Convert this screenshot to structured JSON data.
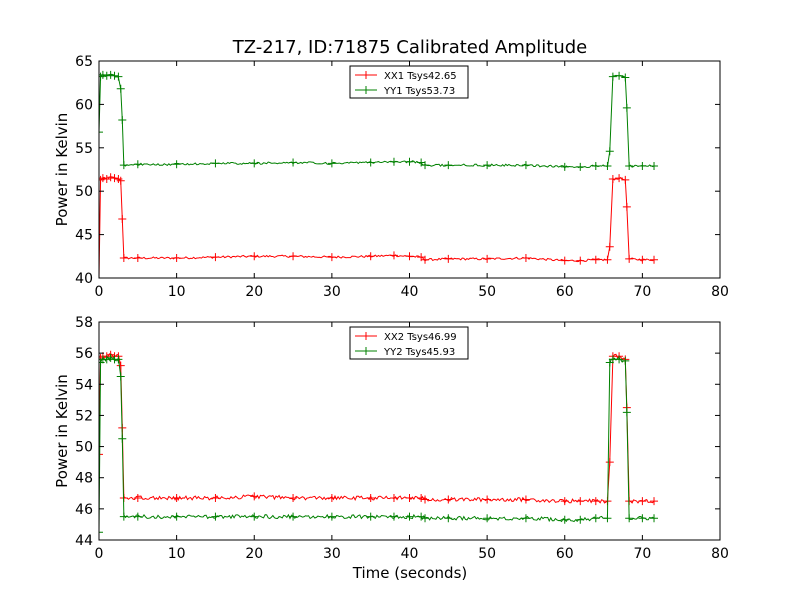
{
  "figure": {
    "title": "TZ-217, ID:71875 Calibrated Amplitude",
    "xlabel": "Time (seconds)"
  },
  "chart_data": [
    {
      "type": "line",
      "title": "TZ-217, ID:71875 Calibrated Amplitude",
      "xlabel": "",
      "ylabel": "Power in Kelvin",
      "xlim": [
        0,
        80
      ],
      "ylim": [
        40,
        65
      ],
      "xticks": [
        0,
        10,
        20,
        30,
        40,
        50,
        60,
        70,
        80
      ],
      "yticks": [
        40,
        45,
        50,
        55,
        60,
        65
      ],
      "grid": false,
      "legend": "top-center",
      "marker": "+",
      "series": [
        {
          "name": "XX1 Tsys42.65",
          "color": "#ff0000",
          "x": [
            0,
            0.2,
            0.5,
            1,
            1.5,
            2,
            2.5,
            2.8,
            3.0,
            3.2,
            5,
            10,
            15,
            20,
            25,
            30,
            35,
            38,
            40,
            41.5,
            42,
            45,
            50,
            55,
            60,
            62,
            64,
            65.5,
            65.8,
            66.2,
            67,
            67.8,
            68.0,
            68.3,
            70,
            71.5
          ],
          "y": [
            40,
            51.3,
            51.5,
            51.4,
            51.6,
            51.5,
            51.4,
            51.2,
            46.8,
            42.3,
            42.3,
            42.3,
            42.4,
            42.5,
            42.5,
            42.4,
            42.5,
            42.6,
            42.5,
            42.4,
            42.1,
            42.2,
            42.2,
            42.3,
            42.0,
            42.0,
            42.1,
            42.1,
            43.6,
            51.4,
            51.5,
            51.3,
            48.2,
            42.2,
            42.1,
            42.1
          ]
        },
        {
          "name": "YY1 Tsys53.73",
          "color": "#008000",
          "x": [
            0,
            0.2,
            0.5,
            1,
            1.5,
            2,
            2.5,
            2.8,
            3.0,
            3.2,
            5,
            10,
            15,
            20,
            25,
            30,
            35,
            38,
            40,
            41.5,
            42,
            45,
            50,
            55,
            60,
            62,
            64,
            65.5,
            65.8,
            66.2,
            67,
            67.8,
            68.0,
            68.3,
            70,
            71.5
          ],
          "y": [
            56.8,
            63.2,
            63.4,
            63.3,
            63.4,
            63.3,
            63.2,
            61.8,
            58.2,
            53.0,
            53.1,
            53.1,
            53.2,
            53.2,
            53.3,
            53.2,
            53.3,
            53.4,
            53.4,
            53.3,
            53.0,
            53.0,
            53.0,
            53.0,
            52.8,
            52.8,
            52.9,
            52.9,
            54.6,
            63.2,
            63.3,
            63.1,
            59.6,
            52.9,
            52.9,
            52.9
          ]
        }
      ]
    },
    {
      "type": "line",
      "title": "",
      "xlabel": "Time (seconds)",
      "ylabel": "Power in Kelvin",
      "xlim": [
        0,
        80
      ],
      "ylim": [
        44,
        58
      ],
      "xticks": [
        0,
        10,
        20,
        30,
        40,
        50,
        60,
        70,
        80
      ],
      "yticks": [
        44,
        46,
        48,
        50,
        52,
        54,
        56,
        58
      ],
      "grid": false,
      "legend": "top-center",
      "marker": "+",
      "series": [
        {
          "name": "XX2 Tsys46.99",
          "color": "#ff0000",
          "x": [
            0,
            0.2,
            0.5,
            1,
            1.5,
            2,
            2.5,
            2.8,
            3.0,
            3.2,
            5,
            10,
            15,
            20,
            25,
            30,
            35,
            38,
            40,
            41.5,
            42,
            45,
            50,
            55,
            60,
            62,
            64,
            65.5,
            65.8,
            66.2,
            67,
            67.8,
            68.0,
            68.3,
            70,
            71.5
          ],
          "y": [
            49.5,
            55.7,
            55.8,
            55.8,
            55.9,
            55.8,
            55.8,
            55.2,
            51.2,
            46.7,
            46.7,
            46.7,
            46.7,
            46.8,
            46.7,
            46.7,
            46.7,
            46.7,
            46.7,
            46.7,
            46.6,
            46.6,
            46.6,
            46.6,
            46.5,
            46.5,
            46.5,
            46.5,
            49.0,
            55.8,
            55.8,
            55.6,
            52.5,
            46.5,
            46.5,
            46.5
          ]
        },
        {
          "name": "YY2 Tsys45.93",
          "color": "#008000",
          "x": [
            0,
            0.2,
            0.5,
            1,
            1.5,
            2,
            2.5,
            2.8,
            3.0,
            3.2,
            5,
            10,
            15,
            20,
            25,
            30,
            35,
            38,
            40,
            41.5,
            42,
            45,
            50,
            55,
            60,
            62,
            64,
            65.5,
            65.8,
            66.2,
            67,
            67.8,
            68.0,
            68.3,
            70,
            71.5
          ],
          "y": [
            44.5,
            55.4,
            55.6,
            55.6,
            55.7,
            55.6,
            55.6,
            54.5,
            50.5,
            45.5,
            45.5,
            45.5,
            45.5,
            45.5,
            45.5,
            45.5,
            45.5,
            45.5,
            45.5,
            45.5,
            45.4,
            45.4,
            45.4,
            45.4,
            45.3,
            45.3,
            45.4,
            45.4,
            55.4,
            55.6,
            55.6,
            55.5,
            52.2,
            45.4,
            45.4,
            45.4
          ]
        }
      ]
    }
  ]
}
